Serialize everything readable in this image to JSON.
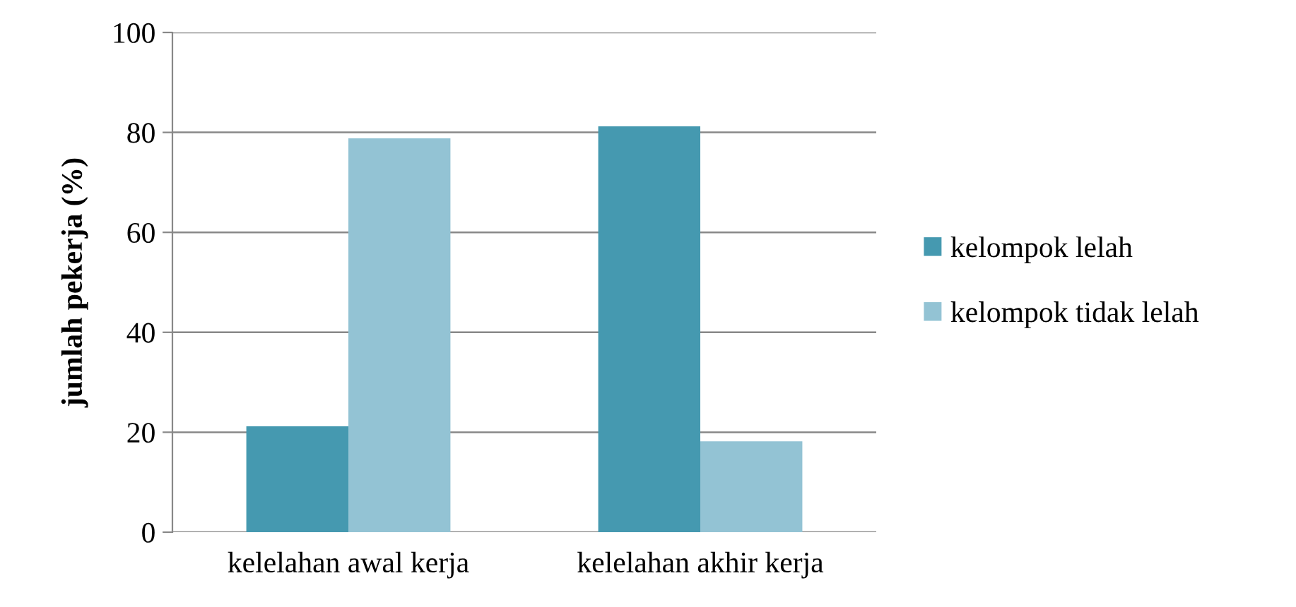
{
  "chart_data": {
    "type": "bar",
    "ylabel": "jumlah pekerja (%)",
    "categories": [
      "kelelahan awal kerja",
      "kelelahan akhir kerja"
    ],
    "series": [
      {
        "name": "kelompok lelah",
        "color": "#4599b0",
        "values": [
          21.2,
          81.2
        ]
      },
      {
        "name": "kelompok tidak lelah",
        "color": "#93c3d4",
        "values": [
          78.8,
          18.2
        ]
      }
    ],
    "ylim": [
      0,
      100
    ],
    "yticks": [
      0,
      20,
      40,
      60,
      80,
      100
    ],
    "grid": "y",
    "legend": "right"
  }
}
